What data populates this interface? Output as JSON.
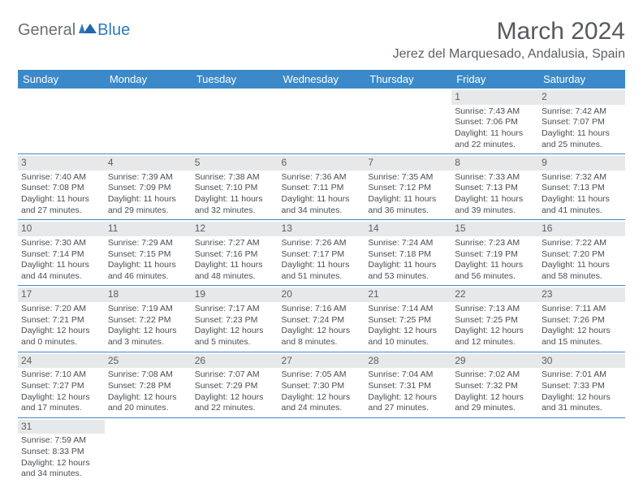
{
  "logo": {
    "text1": "General",
    "text2": "Blue"
  },
  "title": "March 2024",
  "location": "Jerez del Marquesado, Andalusia, Spain",
  "colors": {
    "header_bg": "#3b89c9",
    "header_text": "#ffffff",
    "daynum_bg": "#e7e8e9",
    "border": "#3b89c9",
    "body_text": "#4a4e52",
    "logo_gray": "#6b6f73",
    "logo_blue": "#2f7bbf"
  },
  "weekdays": [
    "Sunday",
    "Monday",
    "Tuesday",
    "Wednesday",
    "Thursday",
    "Friday",
    "Saturday"
  ],
  "weeks": [
    [
      null,
      null,
      null,
      null,
      null,
      {
        "n": "1",
        "sr": "Sunrise: 7:43 AM",
        "ss": "Sunset: 7:06 PM",
        "d1": "Daylight: 11 hours",
        "d2": "and 22 minutes."
      },
      {
        "n": "2",
        "sr": "Sunrise: 7:42 AM",
        "ss": "Sunset: 7:07 PM",
        "d1": "Daylight: 11 hours",
        "d2": "and 25 minutes."
      }
    ],
    [
      {
        "n": "3",
        "sr": "Sunrise: 7:40 AM",
        "ss": "Sunset: 7:08 PM",
        "d1": "Daylight: 11 hours",
        "d2": "and 27 minutes."
      },
      {
        "n": "4",
        "sr": "Sunrise: 7:39 AM",
        "ss": "Sunset: 7:09 PM",
        "d1": "Daylight: 11 hours",
        "d2": "and 29 minutes."
      },
      {
        "n": "5",
        "sr": "Sunrise: 7:38 AM",
        "ss": "Sunset: 7:10 PM",
        "d1": "Daylight: 11 hours",
        "d2": "and 32 minutes."
      },
      {
        "n": "6",
        "sr": "Sunrise: 7:36 AM",
        "ss": "Sunset: 7:11 PM",
        "d1": "Daylight: 11 hours",
        "d2": "and 34 minutes."
      },
      {
        "n": "7",
        "sr": "Sunrise: 7:35 AM",
        "ss": "Sunset: 7:12 PM",
        "d1": "Daylight: 11 hours",
        "d2": "and 36 minutes."
      },
      {
        "n": "8",
        "sr": "Sunrise: 7:33 AM",
        "ss": "Sunset: 7:13 PM",
        "d1": "Daylight: 11 hours",
        "d2": "and 39 minutes."
      },
      {
        "n": "9",
        "sr": "Sunrise: 7:32 AM",
        "ss": "Sunset: 7:13 PM",
        "d1": "Daylight: 11 hours",
        "d2": "and 41 minutes."
      }
    ],
    [
      {
        "n": "10",
        "sr": "Sunrise: 7:30 AM",
        "ss": "Sunset: 7:14 PM",
        "d1": "Daylight: 11 hours",
        "d2": "and 44 minutes."
      },
      {
        "n": "11",
        "sr": "Sunrise: 7:29 AM",
        "ss": "Sunset: 7:15 PM",
        "d1": "Daylight: 11 hours",
        "d2": "and 46 minutes."
      },
      {
        "n": "12",
        "sr": "Sunrise: 7:27 AM",
        "ss": "Sunset: 7:16 PM",
        "d1": "Daylight: 11 hours",
        "d2": "and 48 minutes."
      },
      {
        "n": "13",
        "sr": "Sunrise: 7:26 AM",
        "ss": "Sunset: 7:17 PM",
        "d1": "Daylight: 11 hours",
        "d2": "and 51 minutes."
      },
      {
        "n": "14",
        "sr": "Sunrise: 7:24 AM",
        "ss": "Sunset: 7:18 PM",
        "d1": "Daylight: 11 hours",
        "d2": "and 53 minutes."
      },
      {
        "n": "15",
        "sr": "Sunrise: 7:23 AM",
        "ss": "Sunset: 7:19 PM",
        "d1": "Daylight: 11 hours",
        "d2": "and 56 minutes."
      },
      {
        "n": "16",
        "sr": "Sunrise: 7:22 AM",
        "ss": "Sunset: 7:20 PM",
        "d1": "Daylight: 11 hours",
        "d2": "and 58 minutes."
      }
    ],
    [
      {
        "n": "17",
        "sr": "Sunrise: 7:20 AM",
        "ss": "Sunset: 7:21 PM",
        "d1": "Daylight: 12 hours",
        "d2": "and 0 minutes."
      },
      {
        "n": "18",
        "sr": "Sunrise: 7:19 AM",
        "ss": "Sunset: 7:22 PM",
        "d1": "Daylight: 12 hours",
        "d2": "and 3 minutes."
      },
      {
        "n": "19",
        "sr": "Sunrise: 7:17 AM",
        "ss": "Sunset: 7:23 PM",
        "d1": "Daylight: 12 hours",
        "d2": "and 5 minutes."
      },
      {
        "n": "20",
        "sr": "Sunrise: 7:16 AM",
        "ss": "Sunset: 7:24 PM",
        "d1": "Daylight: 12 hours",
        "d2": "and 8 minutes."
      },
      {
        "n": "21",
        "sr": "Sunrise: 7:14 AM",
        "ss": "Sunset: 7:25 PM",
        "d1": "Daylight: 12 hours",
        "d2": "and 10 minutes."
      },
      {
        "n": "22",
        "sr": "Sunrise: 7:13 AM",
        "ss": "Sunset: 7:25 PM",
        "d1": "Daylight: 12 hours",
        "d2": "and 12 minutes."
      },
      {
        "n": "23",
        "sr": "Sunrise: 7:11 AM",
        "ss": "Sunset: 7:26 PM",
        "d1": "Daylight: 12 hours",
        "d2": "and 15 minutes."
      }
    ],
    [
      {
        "n": "24",
        "sr": "Sunrise: 7:10 AM",
        "ss": "Sunset: 7:27 PM",
        "d1": "Daylight: 12 hours",
        "d2": "and 17 minutes."
      },
      {
        "n": "25",
        "sr": "Sunrise: 7:08 AM",
        "ss": "Sunset: 7:28 PM",
        "d1": "Daylight: 12 hours",
        "d2": "and 20 minutes."
      },
      {
        "n": "26",
        "sr": "Sunrise: 7:07 AM",
        "ss": "Sunset: 7:29 PM",
        "d1": "Daylight: 12 hours",
        "d2": "and 22 minutes."
      },
      {
        "n": "27",
        "sr": "Sunrise: 7:05 AM",
        "ss": "Sunset: 7:30 PM",
        "d1": "Daylight: 12 hours",
        "d2": "and 24 minutes."
      },
      {
        "n": "28",
        "sr": "Sunrise: 7:04 AM",
        "ss": "Sunset: 7:31 PM",
        "d1": "Daylight: 12 hours",
        "d2": "and 27 minutes."
      },
      {
        "n": "29",
        "sr": "Sunrise: 7:02 AM",
        "ss": "Sunset: 7:32 PM",
        "d1": "Daylight: 12 hours",
        "d2": "and 29 minutes."
      },
      {
        "n": "30",
        "sr": "Sunrise: 7:01 AM",
        "ss": "Sunset: 7:33 PM",
        "d1": "Daylight: 12 hours",
        "d2": "and 31 minutes."
      }
    ],
    [
      {
        "n": "31",
        "sr": "Sunrise: 7:59 AM",
        "ss": "Sunset: 8:33 PM",
        "d1": "Daylight: 12 hours",
        "d2": "and 34 minutes."
      },
      null,
      null,
      null,
      null,
      null,
      null
    ]
  ]
}
